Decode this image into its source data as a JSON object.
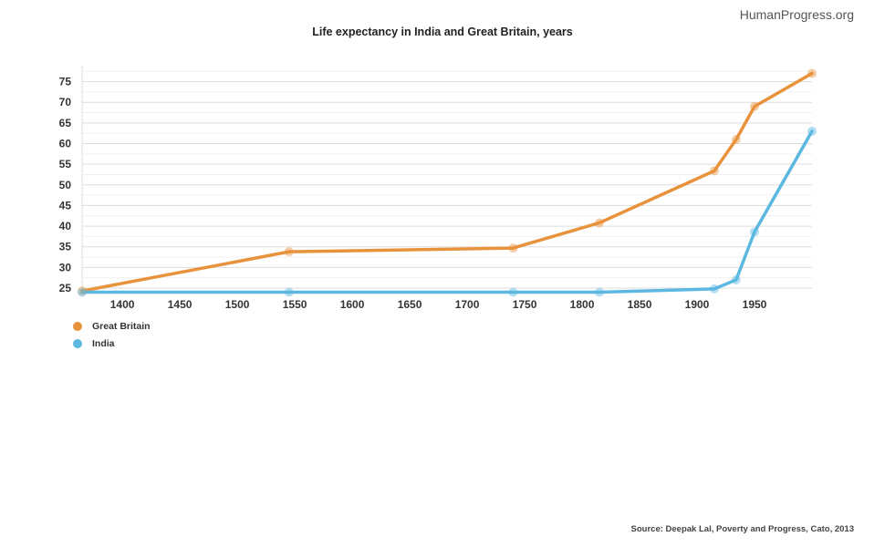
{
  "brand": "HumanProgress.org",
  "source": "Source: Deepak Lal, Poverty and Progress, Cato, 2013",
  "chart_data": {
    "type": "line",
    "title": "Life expectancy in India and Great Britain, years",
    "xlabel": "",
    "ylabel": "",
    "xlim": [
      1365,
      2000
    ],
    "ylim": [
      25,
      78
    ],
    "x_ticks": [
      1400,
      1450,
      1500,
      1550,
      1600,
      1650,
      1700,
      1750,
      1800,
      1850,
      1900,
      1950
    ],
    "y_ticks": [
      25,
      30,
      35,
      40,
      45,
      50,
      55,
      60,
      65,
      70,
      75
    ],
    "legend_position": "bottom-left",
    "series": [
      {
        "name": "Great Britain",
        "color": "#e8923c",
        "points": [
          [
            1365,
            24.3
          ],
          [
            1545,
            33.8
          ],
          [
            1740,
            34.7
          ],
          [
            1815,
            40.8
          ],
          [
            1915,
            53.4
          ],
          [
            1934,
            61
          ],
          [
            1950,
            69
          ],
          [
            2000,
            77
          ]
        ]
      },
      {
        "name": "India",
        "color": "#5cb8e0",
        "points": [
          [
            1365,
            24
          ],
          [
            1545,
            24
          ],
          [
            1740,
            24
          ],
          [
            1815,
            24
          ],
          [
            1915,
            24.8
          ],
          [
            1934,
            27
          ],
          [
            1950,
            38.6
          ],
          [
            2000,
            63
          ]
        ]
      }
    ]
  }
}
